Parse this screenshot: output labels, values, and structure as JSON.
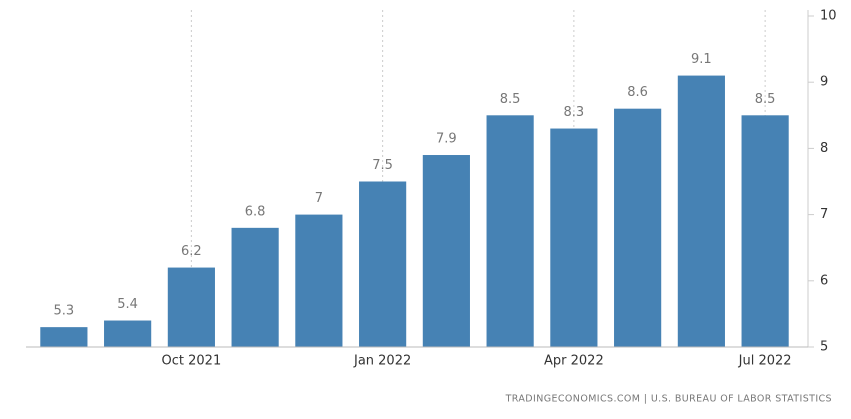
{
  "chart_data": {
    "type": "bar",
    "categories": [
      null,
      null,
      "Oct 2021",
      null,
      null,
      "Jan 2022",
      null,
      null,
      "Apr 2022",
      null,
      null,
      "Jul 2022"
    ],
    "values": [
      5.3,
      5.4,
      6.2,
      6.8,
      7,
      7.5,
      7.9,
      8.5,
      8.3,
      8.6,
      9.1,
      8.5
    ],
    "color": "#4682b4",
    "ylim": [
      5,
      10
    ],
    "yticks": [
      5,
      6,
      7,
      8,
      9,
      10
    ],
    "grid": true,
    "source": "TRADINGECONOMICS.COM | U.S. BUREAU OF LABOR STATISTICS"
  }
}
